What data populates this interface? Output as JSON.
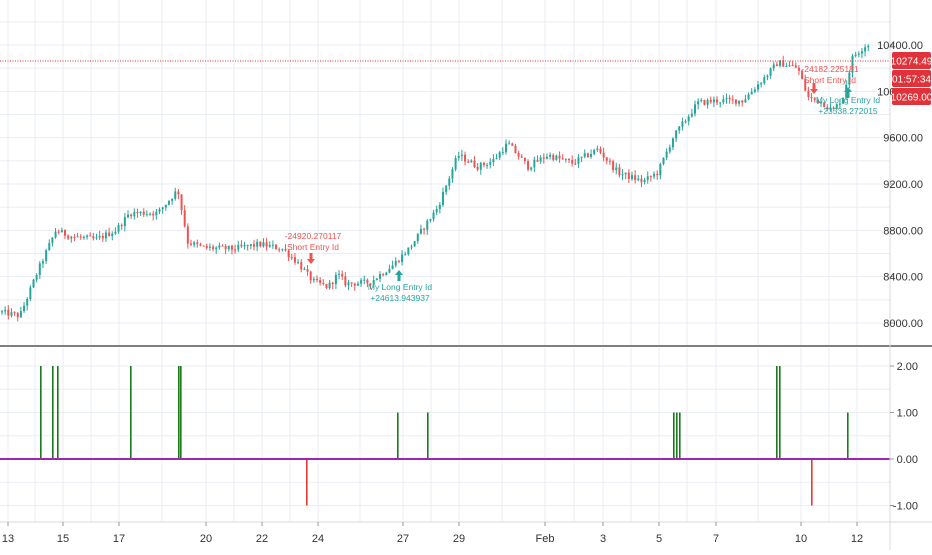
{
  "colors": {
    "up": "#26a69a",
    "down": "#ef5350",
    "grid": "#e9eef3",
    "price_line": "#e0323a",
    "badge_red": "#e0323a",
    "zero_line": "#9c27b0",
    "bar_pos": "#1b7a1b",
    "bar_neg": "#e53935",
    "long_marker": "#26a69a",
    "short_marker": "#ef5350"
  },
  "price_badges": {
    "last_price": "10274.49",
    "countdown": "01:57:34",
    "level": "10269.00"
  },
  "chart_data": [
    {
      "type": "candlestick",
      "y_ticks": [
        "10400.00",
        "10000.00",
        "9600.00",
        "9200.00",
        "8800.00",
        "8400.00",
        "8000.00"
      ],
      "ylim": [
        7900,
        10650
      ],
      "x_ticks": [
        "13",
        "15",
        "17",
        "20",
        "22",
        "24",
        "27",
        "29",
        "Feb",
        "3",
        "5",
        "7",
        "10",
        "12"
      ],
      "trend_points": [
        [
          0,
          8100
        ],
        [
          22,
          8060
        ],
        [
          40,
          8450
        ],
        [
          58,
          8800
        ],
        [
          72,
          8750
        ],
        [
          98,
          8720
        ],
        [
          118,
          8800
        ],
        [
          132,
          8950
        ],
        [
          160,
          8950
        ],
        [
          180,
          9150
        ],
        [
          190,
          8700
        ],
        [
          205,
          8650
        ],
        [
          235,
          8640
        ],
        [
          262,
          8680
        ],
        [
          285,
          8640
        ],
        [
          300,
          8520
        ],
        [
          315,
          8360
        ],
        [
          330,
          8310
        ],
        [
          340,
          8420
        ],
        [
          348,
          8340
        ],
        [
          372,
          8350
        ],
        [
          395,
          8500
        ],
        [
          412,
          8650
        ],
        [
          440,
          9000
        ],
        [
          460,
          9450
        ],
        [
          480,
          9350
        ],
        [
          495,
          9400
        ],
        [
          510,
          9550
        ],
        [
          530,
          9350
        ],
        [
          550,
          9450
        ],
        [
          575,
          9380
        ],
        [
          600,
          9500
        ],
        [
          620,
          9300
        ],
        [
          645,
          9220
        ],
        [
          660,
          9300
        ],
        [
          675,
          9600
        ],
        [
          700,
          9900
        ],
        [
          720,
          9920
        ],
        [
          745,
          9920
        ],
        [
          770,
          10150
        ],
        [
          780,
          10250
        ],
        [
          800,
          10200
        ],
        [
          810,
          9950
        ],
        [
          825,
          9900
        ],
        [
          835,
          9830
        ],
        [
          845,
          9950
        ],
        [
          855,
          10300
        ],
        [
          868,
          10400
        ]
      ],
      "annotations": [
        {
          "kind": "short",
          "lines": [
            "-24920.270117",
            "Short Entry Id"
          ]
        },
        {
          "kind": "long",
          "lines": [
            "My Long Entry Id",
            "+24613.943937"
          ]
        },
        {
          "kind": "short",
          "lines": [
            "-24182.225181",
            "Short Entry Id"
          ]
        },
        {
          "kind": "long",
          "lines": [
            "My Long Entry Id",
            "+23538.272015"
          ]
        }
      ]
    },
    {
      "type": "bar",
      "y_ticks": [
        "2.00",
        "1.00",
        "0.00",
        "-1.00"
      ],
      "ylim": [
        -1.2,
        2.2
      ],
      "series": [
        {
          "color": "#1b7a1b",
          "values": [
            2,
            2,
            2,
            2,
            2,
            2,
            1,
            1,
            1,
            1,
            1,
            2,
            2,
            1
          ]
        },
        {
          "color": "#e53935",
          "values": [
            -1,
            -1
          ]
        }
      ]
    }
  ]
}
